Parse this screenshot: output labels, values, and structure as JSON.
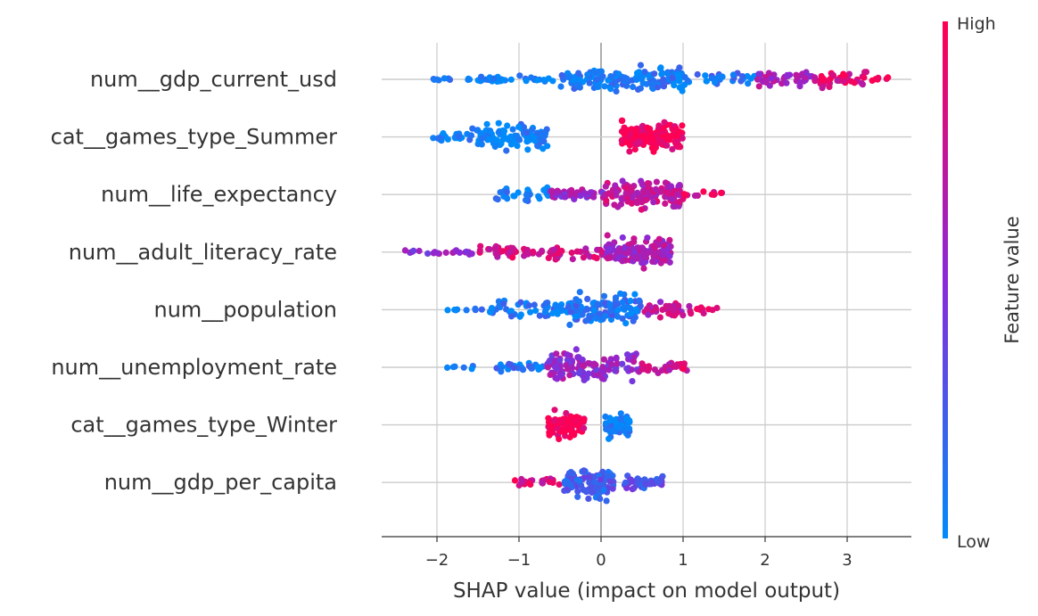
{
  "chart_data": {
    "type": "scatter",
    "subtype": "shap-beeswarm",
    "title": "",
    "xlabel": "SHAP value (impact on model output)",
    "ylabel": "",
    "xlim": [
      -2.65,
      3.8
    ],
    "x_ticks": [
      -2,
      -1,
      0,
      1,
      2,
      3
    ],
    "x_tick_labels": [
      "−2",
      "−1",
      "0",
      "1",
      "2",
      "3"
    ],
    "grid": "horizontal lines per feature, vertical lines at ticks",
    "colorbar": {
      "title": "Feature value",
      "high_label": "High",
      "low_label": "Low",
      "low_color": "#008bfb",
      "mid_color": "#8a2ad8",
      "high_color": "#ff0052"
    },
    "features": [
      {
        "name": "num__gdp_current_usd",
        "segments": [
          {
            "from": -2.05,
            "to": -1.6,
            "n": 10,
            "spread": 0.1,
            "color": 0.02
          },
          {
            "from": -1.6,
            "to": -0.5,
            "n": 30,
            "spread": 0.25,
            "color": 0.05
          },
          {
            "from": -0.5,
            "to": 0.3,
            "n": 70,
            "spread": 0.9,
            "color": 0.06
          },
          {
            "from": 0.3,
            "to": 1.0,
            "n": 70,
            "spread": 1.0,
            "color": 0.06
          },
          {
            "from": 1.0,
            "to": 1.9,
            "n": 30,
            "spread": 0.45,
            "color": 0.15
          },
          {
            "from": 1.9,
            "to": 2.6,
            "n": 40,
            "spread": 0.6,
            "color": 0.6
          },
          {
            "from": 2.6,
            "to": 3.25,
            "n": 40,
            "spread": 0.6,
            "color": 0.85
          },
          {
            "from": 3.25,
            "to": 3.5,
            "n": 6,
            "spread": 0.15,
            "color": 0.98
          }
        ]
      },
      {
        "name": "cat__games_type_Summer",
        "segments": [
          {
            "from": -2.05,
            "to": -1.6,
            "n": 20,
            "spread": 0.3,
            "color": 0.03
          },
          {
            "from": -1.6,
            "to": -0.65,
            "n": 110,
            "spread": 0.9,
            "color": 0.03
          },
          {
            "from": 0.25,
            "to": 1.0,
            "n": 150,
            "spread": 1.0,
            "color": 0.97
          }
        ]
      },
      {
        "name": "num__life_expectancy",
        "segments": [
          {
            "from": -1.3,
            "to": -0.6,
            "n": 30,
            "spread": 0.5,
            "color": 0.08
          },
          {
            "from": -0.6,
            "to": 0.05,
            "n": 50,
            "spread": 0.35,
            "color": 0.55
          },
          {
            "from": 0.05,
            "to": 1.0,
            "n": 130,
            "spread": 1.0,
            "color": 0.72
          },
          {
            "from": 1.0,
            "to": 1.5,
            "n": 12,
            "spread": 0.3,
            "color": 0.85
          }
        ]
      },
      {
        "name": "num__adult_literacy_rate",
        "segments": [
          {
            "from": -2.4,
            "to": -1.5,
            "n": 20,
            "spread": 0.2,
            "color": 0.55
          },
          {
            "from": -1.5,
            "to": 0.05,
            "n": 70,
            "spread": 0.45,
            "color": 0.8
          },
          {
            "from": 0.05,
            "to": 0.85,
            "n": 160,
            "spread": 1.0,
            "color": 0.62
          }
        ]
      },
      {
        "name": "num__population",
        "segments": [
          {
            "from": -1.95,
            "to": -1.4,
            "n": 8,
            "spread": 0.2,
            "color": 0.05
          },
          {
            "from": -1.4,
            "to": -0.4,
            "n": 50,
            "spread": 0.55,
            "color": 0.08
          },
          {
            "from": -0.4,
            "to": 0.5,
            "n": 120,
            "spread": 1.0,
            "color": 0.12
          },
          {
            "from": 0.5,
            "to": 1.1,
            "n": 40,
            "spread": 0.5,
            "color": 0.7
          },
          {
            "from": 1.1,
            "to": 1.42,
            "n": 10,
            "spread": 0.25,
            "color": 0.95
          }
        ]
      },
      {
        "name": "num__unemployment_rate",
        "segments": [
          {
            "from": -1.95,
            "to": -1.4,
            "n": 6,
            "spread": 0.1,
            "color": 0.05
          },
          {
            "from": -1.4,
            "to": -0.7,
            "n": 30,
            "spread": 0.3,
            "color": 0.1
          },
          {
            "from": -0.7,
            "to": 0.5,
            "n": 120,
            "spread": 1.0,
            "color": 0.55
          },
          {
            "from": 0.5,
            "to": 1.05,
            "n": 30,
            "spread": 0.35,
            "color": 0.8
          }
        ]
      },
      {
        "name": "cat__games_type_Winter",
        "segments": [
          {
            "from": -0.65,
            "to": -0.2,
            "n": 80,
            "spread": 0.8,
            "color": 0.97
          },
          {
            "from": 0.05,
            "to": 0.35,
            "n": 70,
            "spread": 0.8,
            "color": 0.03
          }
        ]
      },
      {
        "name": "num__gdp_per_capita",
        "segments": [
          {
            "from": -1.1,
            "to": -0.45,
            "n": 20,
            "spread": 0.35,
            "color": 0.85
          },
          {
            "from": -0.45,
            "to": 0.15,
            "n": 100,
            "spread": 1.0,
            "color": 0.25
          },
          {
            "from": 0.15,
            "to": 0.75,
            "n": 40,
            "spread": 0.6,
            "color": 0.3
          }
        ]
      }
    ]
  }
}
